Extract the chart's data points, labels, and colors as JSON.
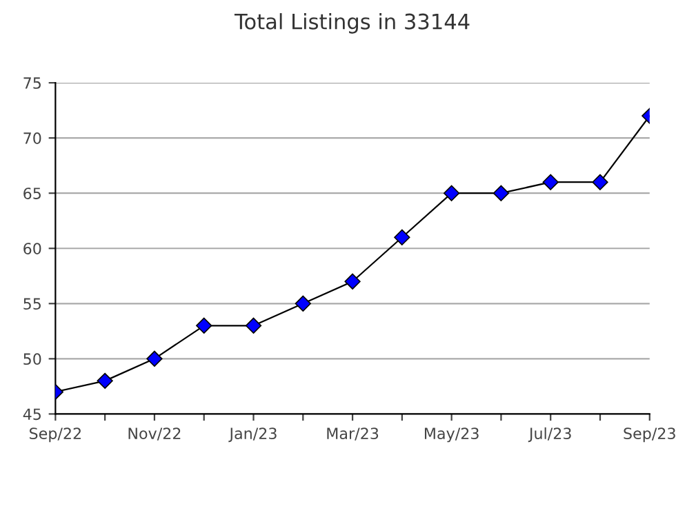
{
  "chart_data": {
    "type": "line",
    "title": "Total Listings in 33144",
    "categories": [
      "Sep/22",
      null,
      "Nov/22",
      null,
      "Jan/23",
      null,
      "Mar/23",
      null,
      "May/23",
      null,
      "Jul/23",
      null,
      "Sep/23"
    ],
    "series": [
      {
        "color": "#0000ff",
        "values": [
          47,
          48,
          50,
          53,
          53,
          55,
          57,
          61,
          65,
          65,
          66,
          66,
          72
        ]
      }
    ],
    "ylim": [
      45,
      75
    ],
    "yticks": [
      45,
      50,
      55,
      60,
      65,
      70,
      75
    ],
    "grid": "y",
    "marker": "diamond",
    "line_style": "solid",
    "legend": false
  }
}
